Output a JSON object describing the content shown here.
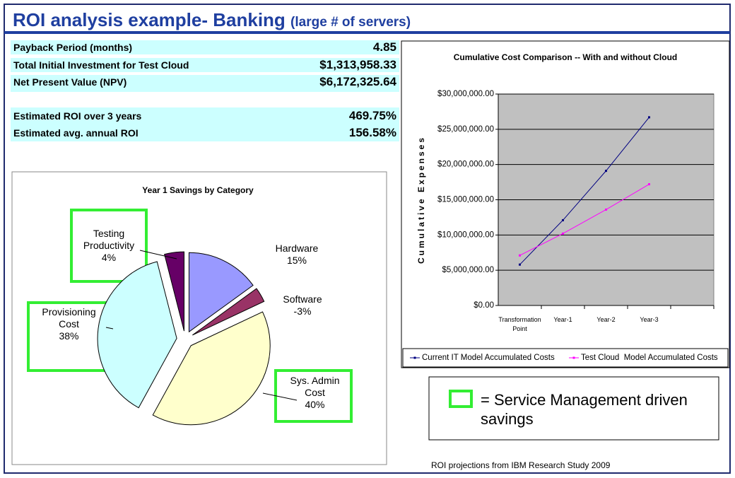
{
  "title": "ROI analysis example- Banking",
  "title_note": "(large # of servers)",
  "metrics": [
    {
      "label": "Payback Period (months)",
      "value": "4.85"
    },
    {
      "label": "Total Initial Investment for Test Cloud",
      "value": "$1,313,958.33"
    },
    {
      "label": "Net Present Value (NPV)",
      "value": "$6,172,325.64"
    },
    {
      "label": "Estimated ROI over 3 years",
      "value": "469.75%"
    },
    {
      "label": "Estimated avg. annual ROI",
      "value": "156.58%"
    }
  ],
  "legend_note": "= Service Management driven savings",
  "source": "ROI projections from IBM Research Study 2009",
  "chart_data": [
    {
      "type": "pie",
      "title": "Year 1 Savings by Category",
      "categories": [
        "Hardware",
        "Software",
        "Sys. Admin Cost",
        "Provisioning Cost",
        "Testing Productivity"
      ],
      "values": [
        15,
        -3,
        40,
        38,
        4
      ],
      "value_labels": [
        "15%",
        "-3%",
        "40%",
        "38%",
        "4%"
      ],
      "colors": [
        "#9999ff",
        "#993366",
        "#ffffcc",
        "#ccffff",
        "#660066"
      ]
    },
    {
      "type": "line",
      "title": "Cumulative Cost Comparison -- With and without Cloud",
      "y_label": "Cumulative Expenses",
      "categories": [
        "Transformation Point",
        "Year-1",
        "Year-2",
        "Year-3",
        null
      ],
      "series": [
        {
          "name": "Current IT Model Accumulated Costs",
          "color": "#000080",
          "values": [
            5800000,
            12100000,
            19100000,
            26700000,
            null
          ]
        },
        {
          "name": "Test Cloud  Model Accumulated Costs",
          "color": "#ff00ff",
          "values": [
            7100000,
            10200000,
            13600000,
            17200000,
            null
          ]
        }
      ],
      "ylim": [
        0,
        30000000
      ],
      "yticks": [
        {
          "value": 0,
          "label": "$0.00"
        },
        {
          "value": 5000000,
          "label": "$5,000,000.00"
        },
        {
          "value": 10000000,
          "label": "$10,000,000.00"
        },
        {
          "value": 15000000,
          "label": "$15,000,000.00"
        },
        {
          "value": 20000000,
          "label": "$20,000,000.00"
        },
        {
          "value": 25000000,
          "label": "$25,000,000.00"
        },
        {
          "value": 30000000,
          "label": "$30,000,000.00"
        }
      ],
      "grid": true,
      "plot_color": "#c0c0c0",
      "legend": "bottom"
    }
  ]
}
